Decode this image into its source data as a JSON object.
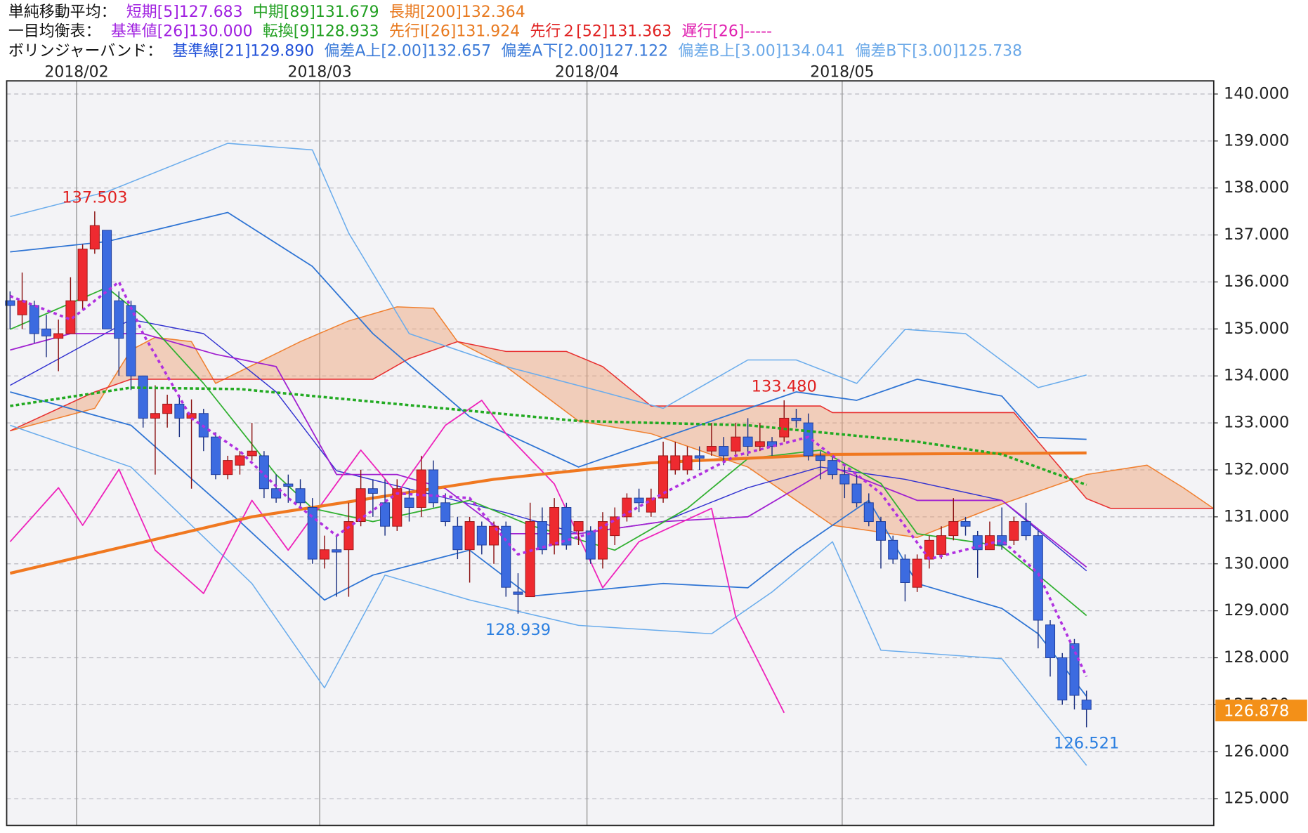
{
  "chart_data": {
    "type": "candlestick",
    "header": [
      {
        "label": "単純移動平均：",
        "items": [
          {
            "text": "短期[5]127.683",
            "color": "#a020e0"
          },
          {
            "text": "中期[89]131.679",
            "color": "#22a022"
          },
          {
            "text": "長期[200]132.364",
            "color": "#e87a20"
          }
        ]
      },
      {
        "label": "一目均衡表：",
        "items": [
          {
            "text": "基準値[26]130.000",
            "color": "#a020e0"
          },
          {
            "text": "転換[9]128.933",
            "color": "#22a022"
          },
          {
            "text": "先行Ⅰ[26]131.924",
            "color": "#e87a20"
          },
          {
            "text": "先行２[52]131.363",
            "color": "#e02020"
          },
          {
            "text": "遅行[26]-----",
            "color": "#e020b0"
          }
        ]
      },
      {
        "label": "ボリンジャーバンド：",
        "items": [
          {
            "text": "基準線[21]129.890",
            "color": "#2050d8"
          },
          {
            "text": "偏差A上[2.00]132.657",
            "color": "#3a7ad8"
          },
          {
            "text": "偏差A下[2.00]127.122",
            "color": "#3a7ad8"
          },
          {
            "text": "偏差B上[3.00]134.041",
            "color": "#6aa8e8"
          },
          {
            "text": "偏差B下[3.00]125.738",
            "color": "#6aa8e8"
          }
        ]
      }
    ],
    "xlim": [
      -0.28,
      99.52
    ],
    "xticks": [
      {
        "value": 5.5,
        "label": "2018/02"
      },
      {
        "value": 25.6,
        "label": "2018/03"
      },
      {
        "value": 47.7,
        "label": "2018/04"
      },
      {
        "value": 68.8,
        "label": "2018/05"
      }
    ],
    "ylim": [
      124.43,
      140.28
    ],
    "yticks": [
      {
        "value": 125,
        "label": "125.000"
      },
      {
        "value": 126,
        "label": "126.000"
      },
      {
        "value": 127,
        "label": "127.000"
      },
      {
        "value": 128,
        "label": "128.000"
      },
      {
        "value": 129,
        "label": "129.000"
      },
      {
        "value": 130,
        "label": "130.000"
      },
      {
        "value": 131,
        "label": "131.000"
      },
      {
        "value": 132,
        "label": "132.000"
      },
      {
        "value": 133,
        "label": "133.000"
      },
      {
        "value": 134,
        "label": "134.000"
      },
      {
        "value": 135,
        "label": "135.000"
      },
      {
        "value": 136,
        "label": "136.000"
      },
      {
        "value": 137,
        "label": "137.000"
      },
      {
        "value": 138,
        "label": "138.000"
      },
      {
        "value": 139,
        "label": "139.000"
      },
      {
        "value": 140,
        "label": "140.000"
      }
    ],
    "grid": true,
    "up_color": "#ee2a30",
    "down_color": "#3c6be0",
    "candles": {
      "open": [
        135.6,
        135.3,
        135.5,
        135.0,
        134.8,
        134.9,
        135.6,
        136.7,
        137.1,
        135.6,
        135.5,
        134.0,
        133.1,
        133.2,
        133.4,
        133.1,
        133.2,
        132.7,
        131.9,
        132.1,
        132.3,
        132.3,
        131.6,
        131.7,
        131.6,
        131.2,
        130.1,
        130.3,
        130.3,
        130.9,
        131.6,
        131.3,
        130.8,
        131.4,
        131.2,
        132.0,
        131.3,
        130.8,
        130.3,
        130.8,
        130.4,
        130.8,
        129.4,
        129.3,
        130.9,
        130.4,
        131.2,
        130.7,
        130.7,
        130.1,
        130.6,
        131.0,
        131.4,
        131.1,
        131.4,
        132.0,
        132.0,
        132.3,
        132.4,
        132.5,
        132.4,
        132.7,
        132.5,
        132.6,
        132.7,
        133.1,
        133.0,
        132.3,
        132.2,
        131.9,
        131.7,
        131.3,
        130.9,
        130.5,
        130.1,
        129.5,
        130.1,
        130.2,
        130.6,
        130.9,
        130.6,
        130.3,
        130.6,
        130.5,
        130.9,
        130.6,
        128.7,
        128.0,
        128.3,
        127.1
      ],
      "high": [
        135.8,
        136.2,
        135.6,
        135.3,
        135.2,
        136.1,
        136.8,
        137.503,
        137.1,
        135.8,
        135.6,
        134.0,
        133.8,
        133.6,
        133.6,
        133.5,
        133.3,
        132.8,
        132.3,
        132.4,
        133.0,
        132.4,
        131.9,
        131.9,
        131.8,
        131.4,
        130.6,
        130.6,
        131.3,
        132.0,
        131.8,
        131.8,
        131.8,
        131.6,
        132.3,
        132.2,
        131.5,
        131.0,
        131.0,
        130.9,
        130.9,
        130.9,
        129.8,
        131.3,
        131.2,
        131.4,
        131.3,
        130.9,
        130.8,
        131.1,
        131.2,
        131.5,
        131.6,
        131.6,
        132.6,
        132.6,
        132.5,
        132.5,
        133.0,
        132.7,
        133.0,
        133.1,
        133.0,
        132.7,
        133.48,
        133.3,
        133.2,
        132.4,
        132.3,
        132.1,
        131.9,
        131.5,
        131.0,
        130.6,
        130.2,
        130.2,
        130.6,
        130.8,
        131.4,
        131.0,
        130.7,
        130.9,
        131.2,
        131.0,
        131.3,
        130.7,
        128.8,
        128.1,
        128.4,
        127.3
      ],
      "low": [
        135.0,
        135.0,
        134.7,
        134.4,
        134.1,
        134.9,
        135.4,
        136.6,
        135.0,
        134.0,
        133.7,
        132.9,
        131.9,
        132.9,
        132.7,
        131.6,
        132.4,
        131.8,
        131.8,
        131.9,
        132.2,
        131.4,
        131.3,
        131.3,
        131.2,
        130.0,
        129.9,
        129.3,
        129.3,
        130.8,
        131.0,
        130.6,
        130.7,
        130.9,
        131.0,
        131.2,
        130.8,
        130.1,
        129.6,
        130.2,
        130.0,
        129.3,
        128.939,
        129.3,
        130.2,
        130.2,
        130.3,
        130.4,
        130.0,
        129.9,
        130.4,
        130.9,
        131.1,
        131.0,
        131.3,
        131.9,
        131.9,
        132.0,
        132.3,
        132.1,
        132.3,
        132.3,
        132.4,
        132.3,
        132.6,
        132.9,
        132.2,
        131.8,
        131.8,
        131.4,
        131.2,
        130.8,
        129.9,
        130.0,
        129.2,
        129.4,
        129.9,
        130.1,
        130.5,
        130.6,
        129.7,
        130.3,
        130.3,
        130.4,
        130.5,
        128.2,
        127.6,
        127.0,
        126.9,
        126.521
      ],
      "close": [
        135.5,
        135.6,
        134.9,
        134.85,
        134.9,
        135.6,
        136.7,
        137.2,
        135.0,
        134.8,
        134.0,
        133.1,
        133.2,
        133.4,
        133.1,
        133.2,
        132.7,
        131.9,
        132.2,
        132.3,
        132.4,
        131.6,
        131.4,
        131.65,
        131.3,
        130.1,
        130.3,
        130.25,
        130.9,
        131.6,
        131.5,
        130.8,
        131.6,
        131.2,
        132.0,
        131.3,
        130.9,
        130.3,
        130.9,
        130.4,
        130.8,
        129.5,
        129.35,
        130.9,
        130.3,
        131.2,
        130.4,
        130.9,
        130.1,
        130.9,
        131.0,
        131.4,
        131.3,
        131.4,
        132.3,
        132.3,
        132.3,
        132.25,
        132.5,
        132.3,
        132.7,
        132.5,
        132.6,
        132.5,
        133.1,
        133.05,
        132.3,
        132.2,
        131.9,
        131.7,
        131.3,
        130.9,
        130.5,
        130.1,
        129.6,
        130.1,
        130.5,
        130.6,
        130.9,
        130.8,
        130.3,
        130.6,
        130.4,
        130.9,
        130.6,
        128.8,
        128.0,
        127.1,
        127.2,
        126.9
      ]
    },
    "cloud": {
      "color": "#f0a070",
      "a": {
        "color": "#f08030",
        "x": [
          0,
          7,
          10,
          12,
          15,
          17,
          24,
          28,
          32,
          35,
          37,
          41,
          47,
          53,
          61,
          65,
          68,
          75,
          82,
          89,
          94,
          97,
          99.5
        ],
        "values": [
          132.83,
          133.31,
          134.55,
          134.82,
          134.73,
          133.84,
          134.73,
          135.17,
          135.47,
          135.44,
          134.73,
          134.2,
          133.04,
          132.77,
          132.06,
          131.35,
          130.82,
          130.56,
          131.27,
          131.9,
          132.1,
          131.62,
          131.18
        ]
      },
      "b": {
        "color": "#e83030",
        "x": [
          0,
          7,
          10,
          30,
          33,
          37,
          41,
          46,
          49,
          53,
          67,
          68,
          83,
          85,
          89,
          91,
          99.5
        ],
        "values": [
          132.83,
          133.66,
          133.93,
          133.93,
          134.37,
          134.73,
          134.52,
          134.52,
          134.2,
          133.36,
          133.36,
          133.22,
          133.22,
          132.6,
          131.39,
          131.18,
          131.18
        ]
      }
    },
    "lines": [
      {
        "color": "#6aacec",
        "width": 1.3,
        "x": [
          0,
          8,
          18,
          25,
          28,
          33,
          41,
          49,
          54,
          61,
          65,
          70,
          74,
          79,
          85,
          89
        ],
        "values": [
          137.39,
          137.92,
          138.95,
          138.81,
          137.04,
          134.9,
          134.2,
          133.66,
          133.31,
          134.34,
          134.34,
          133.84,
          134.99,
          134.9,
          133.75,
          134.02
        ]
      },
      {
        "color": "#6aacec",
        "width": 1.3,
        "x": [
          0,
          10,
          20,
          26,
          31,
          38,
          47,
          58,
          63,
          68,
          72,
          82,
          89
        ],
        "values": [
          132.95,
          132.06,
          129.58,
          127.36,
          129.76,
          129.23,
          128.69,
          128.51,
          129.4,
          130.47,
          128.16,
          127.98,
          125.71
        ]
      },
      {
        "color": "#2e74d4",
        "width": 1.5,
        "x": [
          0,
          8,
          18,
          25,
          30,
          38,
          47,
          58,
          65,
          70,
          75,
          82,
          85,
          89
        ],
        "values": [
          136.64,
          136.86,
          137.48,
          136.33,
          134.9,
          133.13,
          132.06,
          133.04,
          133.66,
          133.48,
          133.93,
          133.57,
          132.69,
          132.65
        ]
      },
      {
        "color": "#2e74d4",
        "width": 1.5,
        "x": [
          0,
          10,
          19,
          26,
          30,
          38,
          43,
          54,
          61,
          65,
          71,
          75,
          82,
          85,
          89
        ],
        "values": [
          133.66,
          132.95,
          130.9,
          129.23,
          129.76,
          130.29,
          129.31,
          129.58,
          129.49,
          130.29,
          131.35,
          129.58,
          129.05,
          128.51,
          127.18
        ]
      },
      {
        "color": "#3030d0",
        "width": 1.2,
        "x": [
          0,
          10,
          16,
          22,
          27,
          34,
          41,
          47,
          54,
          61,
          67,
          74,
          82,
          89
        ],
        "values": [
          133.8,
          135.2,
          134.9,
          133.66,
          131.98,
          131.53,
          131.09,
          130.64,
          130.9,
          131.62,
          132.06,
          131.8,
          131.35,
          129.85
        ]
      },
      {
        "color": "#a020d0",
        "width": 1.5,
        "x": [
          0,
          5,
          11,
          17,
          22,
          27,
          32,
          36,
          41,
          47,
          54,
          61,
          68,
          75,
          82,
          89
        ],
        "values": [
          134.55,
          134.9,
          134.9,
          134.46,
          134.2,
          131.9,
          131.9,
          131.6,
          130.64,
          130.64,
          130.9,
          131.0,
          132.06,
          131.35,
          131.35,
          129.93
        ]
      },
      {
        "color": "#30b030",
        "width": 1.5,
        "x": [
          0,
          8,
          11,
          16,
          22,
          25,
          30,
          38,
          43,
          50,
          56,
          61,
          67,
          72,
          75,
          82,
          85,
          89
        ],
        "values": [
          134.99,
          135.88,
          135.26,
          133.84,
          131.9,
          131.18,
          130.9,
          131.35,
          130.82,
          130.29,
          131.18,
          132.24,
          132.42,
          131.71,
          130.64,
          130.38,
          129.76,
          128.9
        ]
      },
      {
        "color": "#ee22bb",
        "width": 1.5,
        "x": [
          0,
          4,
          6,
          9,
          12,
          16,
          20,
          23,
          29,
          32,
          36,
          39,
          41,
          45,
          49,
          52,
          58,
          60,
          64
        ],
        "values": [
          130.47,
          131.62,
          130.82,
          132.01,
          130.29,
          129.37,
          131.35,
          130.29,
          132.42,
          131.5,
          132.95,
          133.48,
          132.77,
          131.7,
          129.49,
          130.47,
          131.18,
          128.87,
          126.83
        ]
      },
      {
        "color": "#f07820",
        "width": 3.5,
        "x": [
          0,
          20,
          40,
          53,
          68,
          89
        ],
        "values": [
          129.8,
          131.0,
          131.8,
          132.15,
          132.33,
          132.36
        ]
      },
      {
        "color": "#22aa22",
        "width": 3,
        "dash": "4 3",
        "x": [
          0,
          10,
          19,
          30,
          47,
          61,
          75,
          82,
          89
        ],
        "values": [
          133.36,
          133.75,
          133.72,
          133.45,
          133.04,
          132.95,
          132.6,
          132.33,
          131.68
        ]
      },
      {
        "color": "#b030e0",
        "width": 3,
        "dash": "4 4",
        "x": [
          0,
          5,
          9,
          11,
          15,
          19,
          23,
          27,
          32,
          38,
          42,
          48,
          54,
          60,
          66,
          72,
          76,
          82,
          85,
          89
        ],
        "values": [
          135.7,
          135.2,
          136.0,
          134.9,
          133.1,
          132.4,
          131.4,
          130.6,
          131.5,
          131.4,
          130.2,
          130.65,
          131.5,
          132.3,
          132.7,
          131.5,
          130.1,
          130.5,
          129.8,
          127.6
        ]
      }
    ],
    "annotations": [
      {
        "x": 7,
        "value": 137.503,
        "label": "137.503",
        "color": "#e02020",
        "placement": "above"
      },
      {
        "x": 64,
        "value": 133.48,
        "label": "133.480",
        "color": "#e02020",
        "placement": "above"
      },
      {
        "x": 42,
        "value": 128.939,
        "label": "128.939",
        "color": "#2a7ee0",
        "placement": "below"
      },
      {
        "x": 89,
        "value": 126.521,
        "label": "126.521",
        "color": "#2a7ee0",
        "placement": "below"
      }
    ],
    "last_price": {
      "value": 126.878,
      "label": "126.878",
      "color": "#f39018"
    }
  }
}
